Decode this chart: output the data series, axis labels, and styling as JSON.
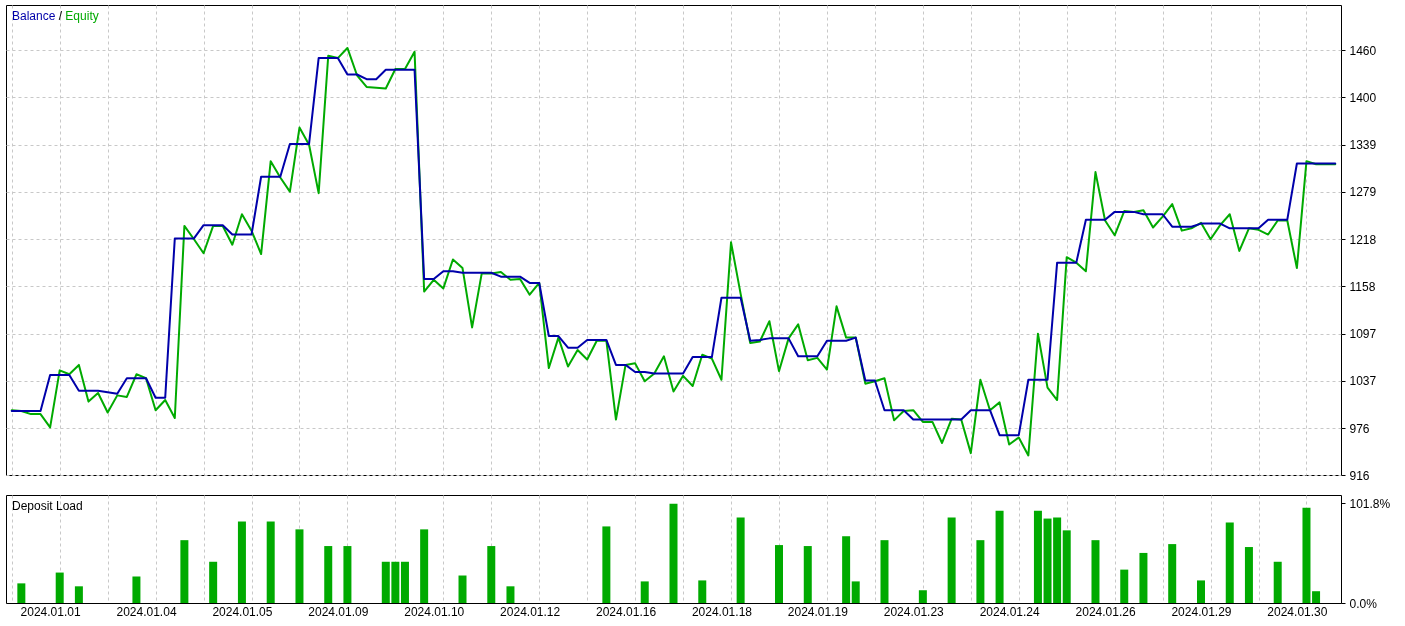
{
  "chart_data": [
    {
      "type": "line",
      "categories": [
        null,
        null,
        null,
        null,
        "2024.01.01",
        null,
        null,
        null,
        null,
        null,
        null,
        null,
        null,
        null,
        "2024.01.04",
        null,
        null,
        null,
        null,
        null,
        null,
        null,
        null,
        null,
        "2024.01.05",
        null,
        null,
        null,
        null,
        null,
        null,
        null,
        null,
        null,
        "2024.01.09",
        null,
        null,
        null,
        null,
        null,
        null,
        null,
        null,
        null,
        "2024.01.10",
        null,
        null,
        null,
        null,
        null,
        null,
        null,
        null,
        null,
        "2024.01.12",
        null,
        null,
        null,
        null,
        null,
        null,
        null,
        null,
        null,
        "2024.01.16",
        null,
        null,
        null,
        null,
        null,
        null,
        null,
        null,
        null,
        "2024.01.18",
        null,
        null,
        null,
        null,
        null,
        null,
        null,
        null,
        null,
        "2024.01.19",
        null,
        null,
        null,
        null,
        null,
        null,
        null,
        null,
        null,
        "2024.01.23",
        null,
        null,
        null,
        null,
        null,
        null,
        null,
        null,
        null,
        "2024.01.24",
        null,
        null,
        null,
        null,
        null,
        null,
        null,
        null,
        null,
        "2024.01.26",
        null,
        null,
        null,
        null,
        null,
        null,
        null,
        null,
        null,
        "2024.01.29",
        null,
        null,
        null,
        null,
        null,
        null,
        null,
        null,
        null,
        "2024.01.30",
        null,
        null,
        null,
        null
      ],
      "annotations": [
        "/"
      ],
      "series": [
        {
          "name": "Balance",
          "color": "#0000aa",
          "values": [
            998,
            998,
            998,
            998,
            1044,
            1044,
            1044,
            1024,
            1024,
            1024,
            1022,
            1020,
            1040,
            1040,
            1040,
            1015,
            1015,
            1219,
            1219,
            1219,
            1236,
            1236,
            1236,
            1224,
            1224,
            1224,
            1298,
            1298,
            1298,
            1340,
            1340,
            1340,
            1450,
            1450,
            1450,
            1429,
            1429,
            1423,
            1423,
            1435,
            1435,
            1435,
            1435,
            1167,
            1167,
            1177,
            1177,
            1175,
            1175,
            1175,
            1175,
            1170,
            1170,
            1170,
            1162,
            1162,
            1094,
            1094,
            1079,
            1079,
            1089,
            1089,
            1089,
            1057,
            1057,
            1048,
            1048,
            1046,
            1046,
            1046,
            1046,
            1067,
            1067,
            1067,
            1143,
            1143,
            1143,
            1088,
            1089,
            1091,
            1091,
            1091,
            1068,
            1068,
            1068,
            1088,
            1088,
            1088,
            1092,
            1037,
            1037,
            999,
            999,
            999,
            987,
            987,
            987,
            987,
            987,
            987,
            999,
            999,
            999,
            967,
            967,
            967,
            1038,
            1038,
            1038,
            1188,
            1188,
            1188,
            1243,
            1243,
            1243,
            1253,
            1253,
            1253,
            1250,
            1250,
            1250,
            1234,
            1234,
            1234,
            1238,
            1238,
            1238,
            1232,
            1232,
            1232,
            1232,
            1243,
            1243,
            1243,
            1315,
            1315,
            1315,
            1315,
            1315
          ]
        },
        {
          "name": "Equity",
          "color": "#00aa00",
          "values": [
            999,
            998,
            994,
            994,
            977,
            1050,
            1045,
            1057,
            1010,
            1021,
            996,
            1018,
            1016,
            1045,
            1040,
            999,
            1012,
            989,
            1235,
            1218,
            1200,
            1235,
            1235,
            1211,
            1250,
            1229,
            1199,
            1318,
            1297,
            1279,
            1361,
            1339,
            1277,
            1453,
            1450,
            1463,
            1428,
            1413,
            1412,
            1411,
            1436,
            1436,
            1458,
            1151,
            1166,
            1155,
            1192,
            1181,
            1105,
            1174,
            1174,
            1176,
            1166,
            1167,
            1147,
            1162,
            1053,
            1092,
            1055,
            1076,
            1064,
            1088,
            1088,
            987,
            1057,
            1059,
            1036,
            1046,
            1068,
            1023,
            1043,
            1030,
            1070,
            1065,
            1038,
            1214,
            1148,
            1085,
            1087,
            1113,
            1049,
            1091,
            1109,
            1063,
            1066,
            1051,
            1132,
            1092,
            1092,
            1033,
            1036,
            1040,
            986,
            998,
            999,
            984,
            984,
            957,
            988,
            987,
            944,
            1038,
            999,
            1009,
            955,
            964,
            941,
            1097,
            1028,
            1012,
            1195,
            1188,
            1177,
            1304,
            1242,
            1223,
            1254,
            1253,
            1255,
            1233,
            1247,
            1263,
            1229,
            1232,
            1239,
            1218,
            1236,
            1250,
            1203,
            1232,
            1230,
            1224,
            1242,
            1242,
            1181,
            1318,
            1314,
            1314,
            1314
          ]
        }
      ],
      "ylim": [
        916,
        1518
      ],
      "yticks": [
        916,
        976,
        1037,
        1097,
        1158,
        1218,
        1279,
        1339,
        1400,
        1460
      ],
      "grid": true,
      "legend": "top left",
      "tick_labels": "y"
    },
    {
      "type": "bar",
      "title": "Deposit Load",
      "categories": [
        null,
        null,
        null,
        null,
        "2024.01.01",
        null,
        null,
        null,
        null,
        null,
        null,
        null,
        null,
        null,
        "2024.01.04",
        null,
        null,
        null,
        null,
        null,
        null,
        null,
        null,
        null,
        "2024.01.05",
        null,
        null,
        null,
        null,
        null,
        null,
        null,
        null,
        null,
        "2024.01.09",
        null,
        null,
        null,
        null,
        null,
        null,
        null,
        null,
        null,
        "2024.01.10",
        null,
        null,
        null,
        null,
        null,
        null,
        null,
        null,
        null,
        "2024.01.12",
        null,
        null,
        null,
        null,
        null,
        null,
        null,
        null,
        null,
        "2024.01.16",
        null,
        null,
        null,
        null,
        null,
        null,
        null,
        null,
        null,
        "2024.01.18",
        null,
        null,
        null,
        null,
        null,
        null,
        null,
        null,
        null,
        "2024.01.19",
        null,
        null,
        null,
        null,
        null,
        null,
        null,
        null,
        null,
        "2024.01.23",
        null,
        null,
        null,
        null,
        null,
        null,
        null,
        null,
        null,
        "2024.01.24",
        null,
        null,
        null,
        null,
        null,
        null,
        null,
        null,
        null,
        "2024.01.26",
        null,
        null,
        null,
        null,
        null,
        null,
        null,
        null,
        null,
        "2024.01.29",
        null,
        null,
        null,
        null,
        null,
        null,
        null,
        null,
        null,
        "2024.01.30",
        null,
        null,
        null,
        null
      ],
      "values": [
        null,
        20,
        null,
        null,
        null,
        31,
        null,
        17,
        null,
        null,
        null,
        null,
        null,
        27,
        null,
        null,
        null,
        null,
        64,
        null,
        null,
        42,
        null,
        null,
        83,
        null,
        null,
        83,
        null,
        null,
        75,
        null,
        null,
        58,
        null,
        58,
        null,
        null,
        null,
        42,
        42,
        42,
        null,
        75,
        null,
        null,
        null,
        28,
        null,
        null,
        58,
        null,
        17,
        null,
        null,
        null,
        null,
        null,
        null,
        null,
        null,
        null,
        78,
        null,
        null,
        null,
        22,
        null,
        null,
        101,
        null,
        null,
        23,
        null,
        null,
        null,
        87,
        null,
        null,
        null,
        59,
        null,
        null,
        58,
        null,
        null,
        null,
        68,
        22,
        null,
        null,
        64,
        null,
        null,
        null,
        13,
        null,
        null,
        87,
        null,
        null,
        64,
        null,
        94,
        null,
        null,
        null,
        94,
        86,
        87,
        74,
        null,
        null,
        64,
        null,
        null,
        34,
        null,
        51,
        null,
        null,
        60,
        null,
        null,
        23,
        null,
        null,
        82,
        null,
        57,
        null,
        null,
        42,
        null,
        null,
        97,
        12,
        null,
        null
      ],
      "color": "#00aa00",
      "ylim": [
        0,
        110
      ],
      "yticks": [
        {
          "value": 0,
          "label": "0.0%"
        },
        {
          "value": 101.8,
          "label": "101.8%"
        }
      ],
      "grid": "x"
    }
  ]
}
